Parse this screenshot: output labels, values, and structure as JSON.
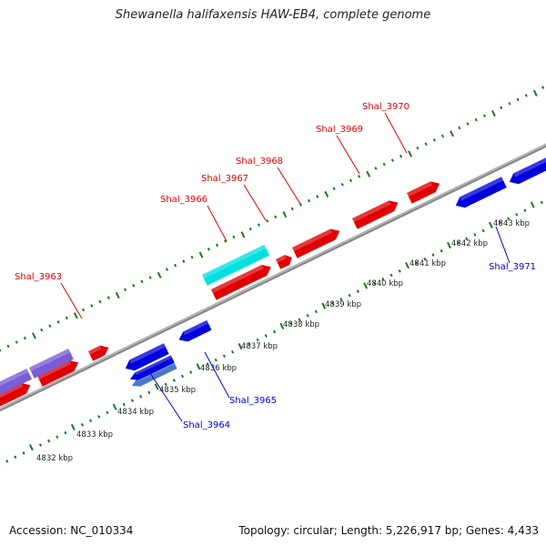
{
  "title": "Shewanella halifaxensis HAW-EB4, complete genome",
  "footer": {
    "accession": "Accession: NC_010334",
    "summary": "Topology: circular; Length: 5,226,917 bp; Genes: 4,433"
  },
  "colors": {
    "forward_gene": "#e00000",
    "reverse_gene": "#0000dd",
    "highlight_gene": "#00e0e0",
    "purple_gene": "#7a5cd6",
    "steel_gene": "#4a78c8",
    "backbone": "#8a8a8a",
    "tick": "#1a7a1a"
  },
  "scale_labels": [
    "4832 kbp",
    "4833 kbp",
    "4834 kbp",
    "4835 kbp",
    "4836 kbp",
    "4837 kbp",
    "4838 kbp",
    "4839 kbp",
    "4840 kbp",
    "4841 kbp",
    "4842 kbp",
    "4843 kbp"
  ],
  "gene_labels": {
    "forward": [
      "Shal_3963",
      "Shal_3966",
      "Shal_3967",
      "Shal_3968",
      "Shal_3969",
      "Shal_3970"
    ],
    "reverse": [
      "Shal_3964",
      "Shal_3965",
      "Shal_3971"
    ]
  }
}
